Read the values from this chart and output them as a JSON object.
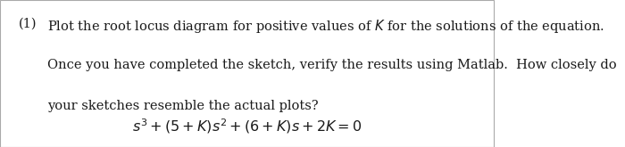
{
  "background_color": "#ffffff",
  "border_color": "#aaaaaa",
  "number": "(1)",
  "line1": "Plot the root locus diagram for positive values of $K$ for the solutions of the equation.",
  "line2": "Once you have completed the sketch, verify the results using Matlab.  How closely do",
  "line3": "your sketches resemble the actual plots?",
  "equation": "$s^3 + (5+K)s^2 + (6+K)s + 2K = 0$",
  "text_color": "#1a1a1a",
  "font_size": 10.5,
  "eq_font_size": 11.5
}
